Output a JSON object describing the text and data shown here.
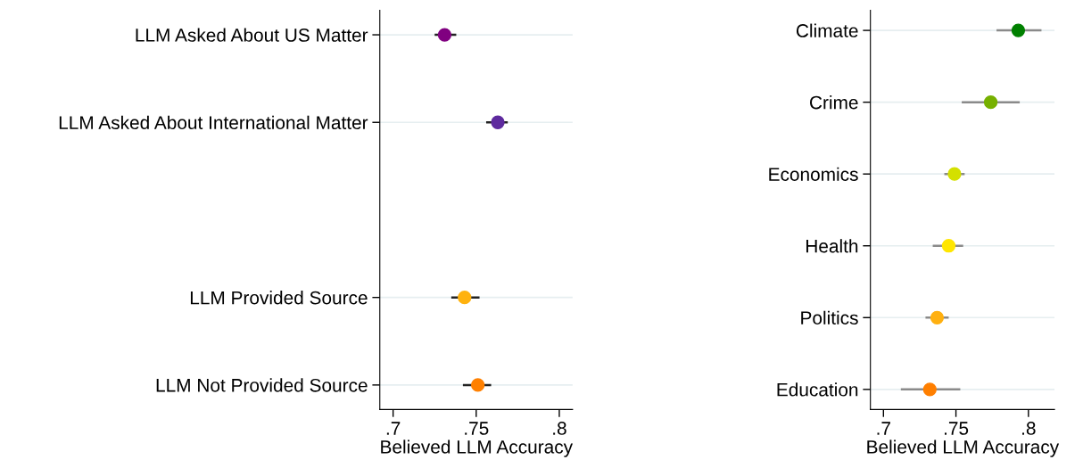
{
  "chart_data": [
    {
      "type": "scatter",
      "orientation": "horizontal",
      "xlabel": "Believed LLM Accuracy",
      "categories": [
        "LLM Asked About US Matter",
        "LLM Asked About International Matter",
        null,
        "LLM Provided Source",
        "LLM Not Provided Source"
      ],
      "values": [
        0.731,
        0.763,
        null,
        0.743,
        0.751
      ],
      "errors": [
        [
          0.725,
          0.738
        ],
        [
          0.756,
          0.769
        ],
        null,
        [
          0.735,
          0.752
        ],
        [
          0.742,
          0.759
        ]
      ],
      "colors": [
        "#800080",
        "#5e2a9e",
        null,
        "#ffb20f",
        "#ff8000"
      ],
      "xlim": [
        0.692,
        0.808
      ],
      "xticks": [
        {
          "value": 0.7,
          "label": ".7"
        },
        {
          "value": 0.75,
          "label": ".75"
        },
        {
          "value": 0.8,
          "label": ".8"
        }
      ],
      "grid": "y",
      "marker": "circle"
    },
    {
      "type": "scatter",
      "orientation": "horizontal",
      "xlabel": "Believed LLM Accuracy",
      "categories": [
        "Climate",
        "Crime",
        "Economics",
        "Health",
        "Politics",
        "Education"
      ],
      "values": [
        0.793,
        0.774,
        0.749,
        0.745,
        0.737,
        0.732
      ],
      "errors": [
        [
          0.778,
          0.809
        ],
        [
          0.754,
          0.794
        ],
        [
          0.742,
          0.756
        ],
        [
          0.734,
          0.755
        ],
        [
          0.729,
          0.745
        ],
        [
          0.712,
          0.753
        ]
      ],
      "colors": [
        "#008000",
        "#76b000",
        "#d4e000",
        "#ffe600",
        "#ffb010",
        "#ff7f00"
      ],
      "xlim": [
        0.691,
        0.818
      ],
      "xticks": [
        {
          "value": 0.7,
          "label": ".7"
        },
        {
          "value": 0.75,
          "label": ".75"
        },
        {
          "value": 0.8,
          "label": ".8"
        }
      ],
      "grid": "y",
      "marker": "circle"
    }
  ]
}
